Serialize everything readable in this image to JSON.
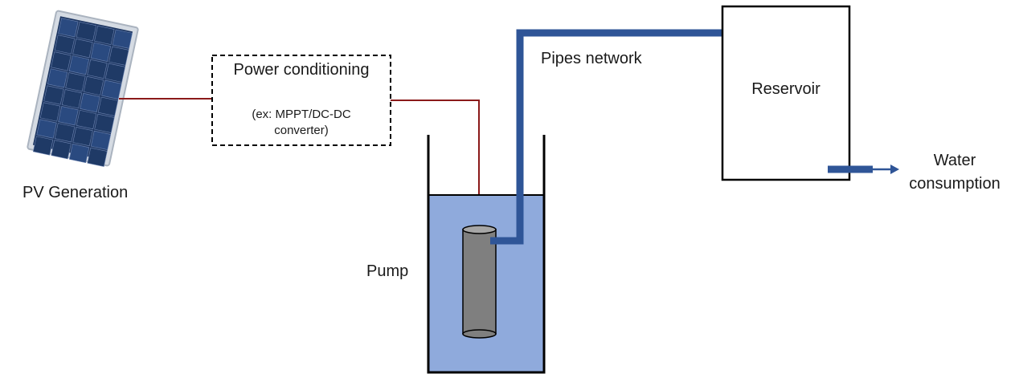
{
  "labels": {
    "pv_generation": "PV Generation",
    "power_conditioning": "Power conditioning",
    "power_conditioning_note_line1": "(ex: MPPT/DC-DC",
    "power_conditioning_note_line2": "converter)",
    "pipes_network": "Pipes network",
    "reservoir": "Reservoir",
    "pump": "Pump",
    "water_consumption_line1": "Water",
    "water_consumption_line2": "consumption"
  },
  "colors": {
    "power_line": "#8b1a1a",
    "pipe": "#2f5597",
    "water": "#8faadc",
    "pump_body": "#7f7f7f",
    "outline": "#000000",
    "panel_frame": "#cfd6df",
    "panel_cell": "#1f3a66"
  }
}
